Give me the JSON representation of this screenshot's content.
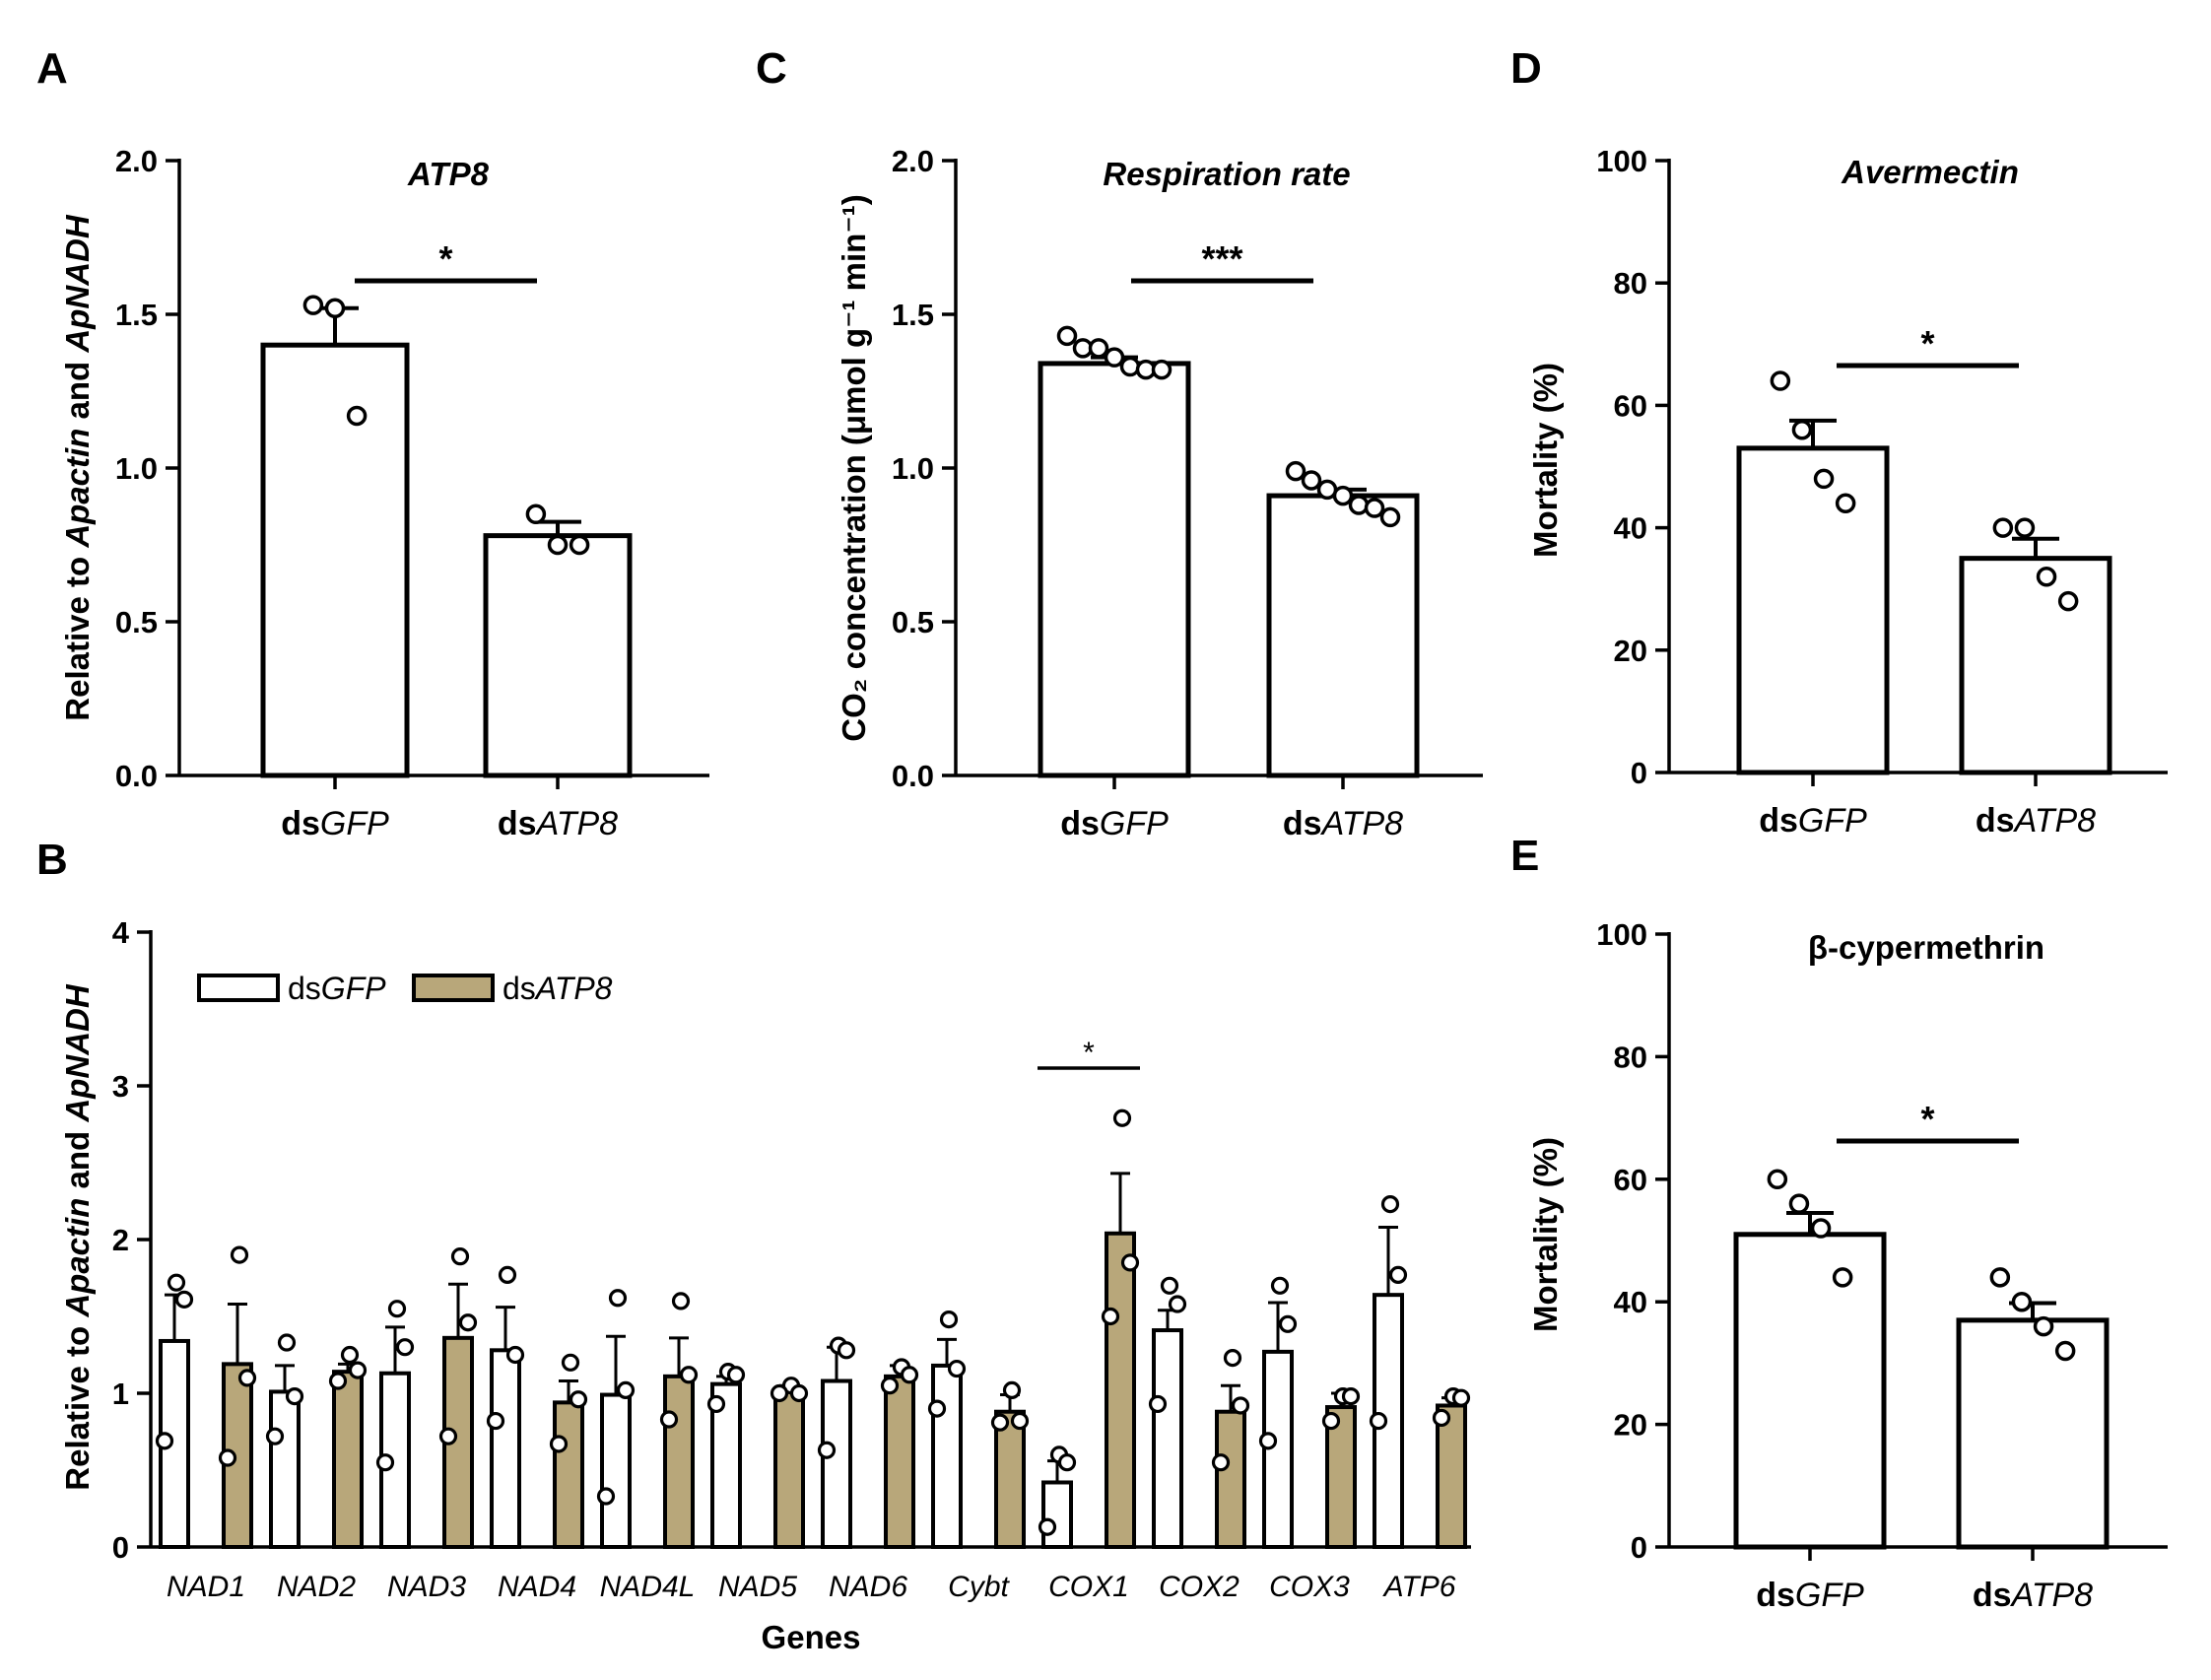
{
  "colors": {
    "bar_gfp": "#ffffff",
    "bar_atp8": "#b8a77a",
    "stroke": "#000000"
  },
  "chart_data": [
    {
      "id": "A",
      "type": "bar",
      "panel_letter": "A",
      "title": "ATP8",
      "ylabel_parts": [
        "Relative to ",
        "Apactin",
        " and ",
        "ApNADH"
      ],
      "ylim": [
        0,
        2.0
      ],
      "yticks": [
        "0.0",
        "0.5",
        "1.0",
        "1.5",
        "2.0"
      ],
      "categories": [
        {
          "prefix": "ds",
          "name": "GFP"
        },
        {
          "prefix": "ds",
          "name": "ATP8"
        }
      ],
      "values": [
        1.4,
        0.78
      ],
      "errors": [
        0.12,
        0.045
      ],
      "points": [
        [
          1.53,
          1.52,
          1.17
        ],
        [
          0.85,
          0.75,
          0.75
        ]
      ],
      "significance": "*"
    },
    {
      "id": "C",
      "type": "bar",
      "panel_letter": "C",
      "title": "Respiration rate",
      "ylabel_text": "CO₂ concentration (μmol g⁻¹ min⁻¹)",
      "ylim": [
        0,
        2.0
      ],
      "yticks": [
        "0.0",
        "0.5",
        "1.0",
        "1.5",
        "2.0"
      ],
      "categories": [
        {
          "prefix": "ds",
          "name": "GFP"
        },
        {
          "prefix": "ds",
          "name": "ATP8"
        }
      ],
      "values": [
        1.34,
        0.91
      ],
      "errors": [
        0.02,
        0.02
      ],
      "points": [
        [
          1.43,
          1.39,
          1.39,
          1.36,
          1.33,
          1.32,
          1.32
        ],
        [
          0.99,
          0.96,
          0.93,
          0.91,
          0.88,
          0.87,
          0.84
        ]
      ],
      "significance": "***"
    },
    {
      "id": "D",
      "type": "bar",
      "panel_letter": "D",
      "title": "Avermectin",
      "ylabel_text": "Mortality (%)",
      "ylim": [
        0,
        100
      ],
      "yticks": [
        "0",
        "20",
        "40",
        "60",
        "80",
        "100"
      ],
      "categories": [
        {
          "prefix": "ds",
          "name": "GFP"
        },
        {
          "prefix": "ds",
          "name": "ATP8"
        }
      ],
      "values": [
        53,
        35
      ],
      "errors": [
        4.5,
        3.2
      ],
      "points": [
        [
          64,
          56,
          48,
          44
        ],
        [
          40,
          40,
          32,
          28
        ]
      ],
      "significance": "*"
    },
    {
      "id": "E",
      "type": "bar",
      "panel_letter": "E",
      "title": "β-cypermethrin",
      "ylabel_text": "Mortality (%)",
      "ylim": [
        0,
        100
      ],
      "yticks": [
        "0",
        "20",
        "40",
        "60",
        "80",
        "100"
      ],
      "categories": [
        {
          "prefix": "ds",
          "name": "GFP"
        },
        {
          "prefix": "ds",
          "name": "ATP8"
        }
      ],
      "values": [
        51,
        37
      ],
      "errors": [
        3.5,
        2.8
      ],
      "points": [
        [
          60,
          56,
          52,
          44
        ],
        [
          44,
          40,
          36,
          32
        ]
      ],
      "significance": "*"
    },
    {
      "id": "B",
      "type": "bar",
      "panel_letter": "B",
      "ylabel_parts": [
        "Relative to ",
        "Apactin",
        " and ",
        "ApNADH"
      ],
      "xlabel": "Genes",
      "ylim": [
        0,
        4
      ],
      "yticks": [
        "0",
        "1",
        "2",
        "3",
        "4"
      ],
      "legend": [
        {
          "prefix": "ds",
          "name": "GFP"
        },
        {
          "prefix": "ds",
          "name": "ATP8"
        }
      ],
      "legend_position": "top-left",
      "categories": [
        "NAD1",
        "NAD2",
        "NAD3",
        "NAD4",
        "NAD4L",
        "NAD5",
        "NAD6",
        "Cybt",
        "COX1",
        "COX2",
        "COX3",
        "ATP6"
      ],
      "series": [
        {
          "values": [
            1.34,
            1.01,
            1.13,
            1.28,
            0.99,
            1.06,
            1.08,
            1.18,
            0.42,
            1.41,
            1.27,
            1.64
          ],
          "errors": [
            0.3,
            0.17,
            0.3,
            0.28,
            0.38,
            0.05,
            0.22,
            0.17,
            0.14,
            0.13,
            0.32,
            0.44
          ],
          "points": [
            [
              1.72,
              1.61,
              0.69
            ],
            [
              1.33,
              0.98,
              0.72
            ],
            [
              1.55,
              1.3,
              0.55
            ],
            [
              1.77,
              1.25,
              0.82
            ],
            [
              1.62,
              1.02,
              0.33
            ],
            [
              1.14,
              1.12,
              0.93
            ],
            [
              1.31,
              1.28,
              0.63
            ],
            [
              1.48,
              1.16,
              0.9
            ],
            [
              0.6,
              0.55,
              0.13
            ],
            [
              1.7,
              1.58,
              0.93
            ],
            [
              1.7,
              1.45,
              0.69
            ],
            [
              2.23,
              1.77,
              0.82
            ]
          ]
        },
        {
          "values": [
            1.19,
            1.14,
            1.36,
            0.94,
            1.11,
            1.02,
            1.11,
            0.88,
            2.04,
            0.88,
            0.91,
            0.92
          ],
          "errors": [
            0.39,
            0.05,
            0.35,
            0.14,
            0.25,
            0.03,
            0.07,
            0.11,
            0.39,
            0.17,
            0.09,
            0.05
          ],
          "points": [
            [
              1.9,
              1.1,
              0.58
            ],
            [
              1.25,
              1.15,
              1.08
            ],
            [
              1.89,
              1.46,
              0.72
            ],
            [
              1.2,
              0.96,
              0.67
            ],
            [
              1.6,
              1.12,
              0.83
            ],
            [
              1.05,
              1.0,
              1.0
            ],
            [
              1.17,
              1.12,
              1.05
            ],
            [
              1.02,
              0.82,
              0.81
            ],
            [
              2.79,
              1.85,
              1.5
            ],
            [
              1.23,
              0.92,
              0.55
            ],
            [
              0.98,
              0.98,
              0.82
            ],
            [
              0.98,
              0.97,
              0.84
            ]
          ]
        }
      ],
      "significance": [
        {
          "category": "COX1",
          "label": "*"
        }
      ]
    }
  ]
}
